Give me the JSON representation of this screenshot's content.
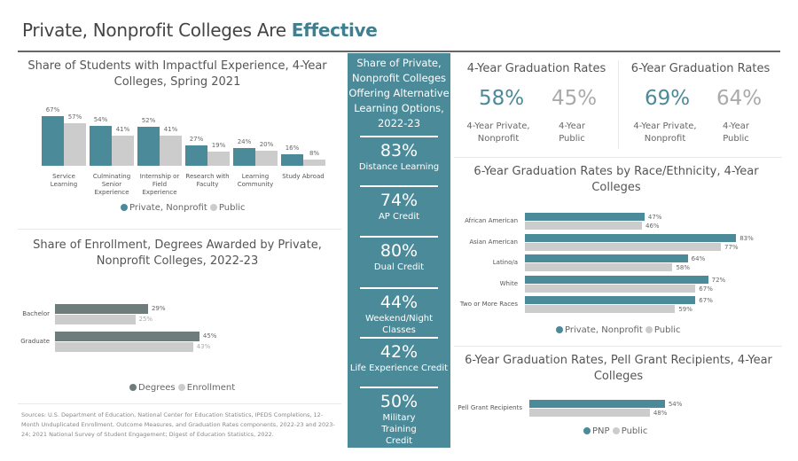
{
  "page_title": {
    "prefix": "Private, Nonprofit Colleges Are ",
    "emphasis": "Effective"
  },
  "colors": {
    "private": "#4b8a99",
    "public": "#cccccc",
    "degrees": "#6e7c7c",
    "enrollment": "#cccccc"
  },
  "middle": {
    "title": "Share of Private, Nonprofit Colleges Offering Alternative Learning Options, 2022-23",
    "stats": [
      {
        "value": "83%",
        "label": "Distance Learning"
      },
      {
        "value": "74%",
        "label": "AP Credit"
      },
      {
        "value": "80%",
        "label": "Dual Credit"
      },
      {
        "value": "44%",
        "label": "Weekend/Night Classes"
      },
      {
        "value": "42%",
        "label": "Life Experience Credit"
      },
      {
        "value": "50%",
        "label": "Military Training Credit"
      }
    ]
  },
  "grad4": {
    "title": "4-Year Graduation Rates",
    "private_value": "58%",
    "private_label": "4-Year Private, Nonprofit",
    "public_value": "45%",
    "public_label": "4-Year Public"
  },
  "grad6": {
    "title": "6-Year Graduation Rates",
    "private_value": "69%",
    "private_label": "4-Year Private, Nonprofit",
    "public_value": "64%",
    "public_label": "4-Year Public"
  },
  "sources": "Sources: U.S. Department of Education, National Center for Education Statistics, IPEDS Completions, 12-Month Unduplicated Enrollment, Outcome Measures, and Graduation Rates components, 2022-23 and 2023-24; 2021 National Survey of Student Engagement; Digest of Education Statistics, 2022.",
  "chart_data": [
    {
      "type": "bar",
      "title": "Share of Students with Impactful Experience, 4-Year Colleges, Spring 2021",
      "categories": [
        "Service Learning",
        "Culminating Senior Experience",
        "Internship or Field Experience",
        "Research with Faculty",
        "Learning Community",
        "Study Abroad"
      ],
      "series": [
        {
          "name": "Private, Nonprofit",
          "values": [
            67,
            54,
            52,
            27,
            24,
            16
          ],
          "labels": [
            "67%",
            "54%",
            "52%",
            "27%",
            "24%",
            "16%"
          ]
        },
        {
          "name": "Public",
          "values": [
            57,
            41,
            41,
            19,
            20,
            8
          ],
          "labels": [
            "57%",
            "41%",
            "41%",
            "19%",
            "20%",
            "8%"
          ]
        }
      ],
      "legend": "bottom"
    },
    {
      "type": "bar",
      "orientation": "horizontal",
      "title": "Share of Enrollment, Degrees Awarded by Private, Nonprofit Colleges, 2022-23",
      "categories": [
        "Bachelor",
        "Graduate"
      ],
      "series": [
        {
          "name": "Degrees",
          "values": [
            29,
            45
          ],
          "labels": [
            "29%",
            "45%"
          ]
        },
        {
          "name": "Enrollment",
          "values": [
            25,
            43
          ],
          "labels": [
            "25%",
            "43%"
          ]
        }
      ],
      "legend": "bottom"
    },
    {
      "type": "bar",
      "orientation": "horizontal",
      "title": "6-Year Graduation Rates by Race/Ethnicity, 4-Year Colleges",
      "categories": [
        "African American",
        "Asian American",
        "Latino/a",
        "White",
        "Two or More Races"
      ],
      "series": [
        {
          "name": "Private, Nonprofit",
          "values": [
            47,
            83,
            64,
            72,
            67
          ],
          "labels": [
            "47%",
            "83%",
            "64%",
            "72%",
            "67%"
          ]
        },
        {
          "name": "Public",
          "values": [
            46,
            77,
            58,
            67,
            59
          ],
          "labels": [
            "46%",
            "77%",
            "58%",
            "67%",
            "59%"
          ]
        }
      ],
      "legend": "bottom"
    },
    {
      "type": "bar",
      "orientation": "horizontal",
      "title": "6-Year Graduation Rates, Pell Grant Recipients, 4-Year Colleges",
      "categories": [
        "Pell Grant Recipients"
      ],
      "series": [
        {
          "name": "PNP",
          "values": [
            54
          ],
          "labels": [
            "54%"
          ]
        },
        {
          "name": "Public",
          "values": [
            48
          ],
          "labels": [
            "48%"
          ]
        }
      ],
      "legend": "bottom"
    }
  ]
}
